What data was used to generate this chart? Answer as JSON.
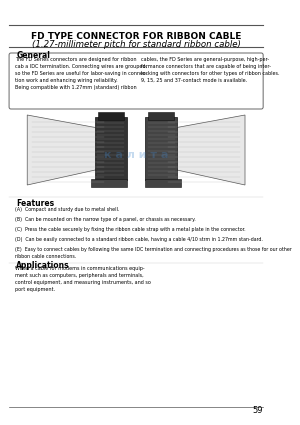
{
  "title_line1": "FD TYPE CONNECTOR FOR RIBBON CABLE",
  "title_line2": "(1.27-millimeter pitch for standard ribbon cable)",
  "section_general": "General",
  "general_text_left": "The FD Series connectors are designed for ribbon\ncab a IDC termination. Connecting wires are grouped,\nso the FD Series are useful for labor-saving in connec-\ntion work and enhancing wiring reliability.\nBeing compatible with 1.27mm (standard) ribbon",
  "general_text_right": "cables, the FD Series are general-purpose, high-per-\nformance connectors that are capable of being inter-\nlocking with connectors for other types of ribbon cables.\n9, 15, 25 and 37-contact mode is available.",
  "section_features": "Features",
  "features_items": [
    "(A)  Compact and sturdy due to metal shell.",
    "(B)  Can be mounted on the narrow type of a panel, or chassis as necessary.",
    "(C)  Press the cable securely by fixing the ribbon cable strap with a metal plate in the connector.",
    "(D)  Can be easily connected to a standard ribbon cable, having a cable 4/10 strm in 1.27mm stan-dard.",
    "(E)  Easy to connect cables by following the same IDC termination and connecting procedures as those for our other ribbon cable connections."
  ],
  "section_applications": "Applications",
  "applications_text": "When a cable for modems in communications equip-\nment such as computers, peripherals and terminals,\ncontrol equipment, and measuring instruments, and so\nport equipment.",
  "page_number": "59",
  "bg_color": "#ffffff",
  "text_color": "#000000",
  "border_color": "#888888"
}
